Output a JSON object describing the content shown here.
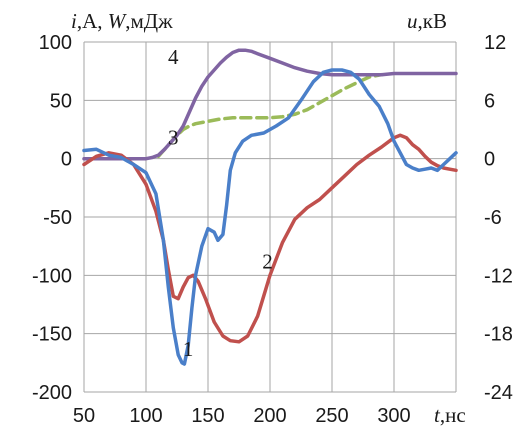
{
  "chart_data": {
    "type": "line",
    "title": "",
    "x_axis": {
      "label_var": "t",
      "label_unit": ",нс",
      "range": [
        50,
        350
      ],
      "ticks": [
        "50",
        "100",
        "150",
        "200",
        "250",
        "300"
      ]
    },
    "y_axis_left": {
      "label_i": "i",
      "label_i_unit": ",А, ",
      "label_w": "W",
      "label_w_unit": ",мДж",
      "range": [
        -200,
        100
      ],
      "ticks": [
        "100",
        "50",
        "0",
        "-50",
        "-100",
        "-150",
        "-200"
      ]
    },
    "y_axis_right": {
      "label_var": "u",
      "label_unit": ",кВ",
      "range": [
        -24,
        12
      ],
      "ticks": [
        "12",
        "6",
        "0",
        "-6",
        "-12",
        "-18",
        "-24"
      ]
    },
    "grid": true,
    "series": [
      {
        "label": "1",
        "color": "#4a7fc9",
        "axis": "left",
        "x": [
          50,
          60,
          70,
          80,
          90,
          100,
          108,
          114,
          118,
          122,
          126,
          129,
          131,
          134,
          137,
          140,
          145,
          150,
          155,
          158,
          162,
          165,
          168,
          172,
          178,
          185,
          195,
          205,
          215,
          225,
          235,
          243,
          250,
          258,
          265,
          272,
          280,
          288,
          295,
          300,
          305,
          310,
          315,
          320,
          325,
          330,
          335,
          340,
          345,
          350
        ],
        "y": [
          7,
          8,
          3,
          1,
          -5,
          -12,
          -30,
          -70,
          -110,
          -145,
          -168,
          -175,
          -176,
          -160,
          -128,
          -100,
          -75,
          -60,
          -63,
          -70,
          -65,
          -40,
          -10,
          5,
          15,
          20,
          22,
          28,
          35,
          50,
          66,
          74,
          76,
          76,
          74,
          68,
          55,
          45,
          30,
          15,
          5,
          -5,
          -8,
          -10,
          -9,
          -8,
          -10,
          -5,
          0,
          5
        ]
      },
      {
        "label": "2",
        "color": "#c0504d",
        "axis": "left",
        "x": [
          50,
          60,
          70,
          80,
          90,
          100,
          108,
          114,
          118,
          122,
          126,
          130,
          134,
          138,
          142,
          148,
          155,
          162,
          168,
          175,
          182,
          190,
          200,
          210,
          220,
          230,
          240,
          250,
          260,
          270,
          280,
          290,
          300,
          305,
          310,
          315,
          320,
          325,
          330,
          335,
          340,
          345,
          350
        ],
        "y": [
          -5,
          2,
          5,
          3,
          -5,
          -22,
          -45,
          -70,
          -95,
          -118,
          -120,
          -110,
          -102,
          -100,
          -105,
          -120,
          -140,
          -152,
          -156,
          -157,
          -152,
          -135,
          -100,
          -72,
          -52,
          -42,
          -35,
          -25,
          -15,
          -5,
          3,
          10,
          18,
          20,
          18,
          12,
          8,
          2,
          -3,
          -6,
          -8,
          -9,
          -10
        ]
      },
      {
        "label": "3",
        "color": "#9bbb59",
        "axis": "left",
        "x": [
          110,
          115,
          120,
          125,
          130,
          135,
          140,
          150,
          160,
          170,
          180,
          190,
          200,
          210,
          220,
          230,
          240,
          250,
          260,
          270,
          280,
          290
        ],
        "y": [
          2,
          8,
          14,
          20,
          25,
          28,
          30,
          32,
          34,
          35,
          35,
          35,
          35,
          36,
          38,
          42,
          48,
          54,
          60,
          65,
          70,
          72
        ]
      },
      {
        "label": "4",
        "color": "#8064a2",
        "axis": "left",
        "x": [
          50,
          60,
          70,
          80,
          90,
          100,
          105,
          110,
          115,
          120,
          125,
          130,
          135,
          140,
          145,
          150,
          155,
          160,
          165,
          170,
          175,
          180,
          185,
          190,
          200,
          210,
          220,
          230,
          240,
          250,
          260,
          270,
          280,
          290,
          300,
          310,
          320,
          330,
          340,
          350
        ],
        "y": [
          0,
          0,
          0,
          0,
          0,
          0,
          1,
          3,
          8,
          14,
          20,
          28,
          40,
          52,
          62,
          70,
          76,
          82,
          87,
          91,
          93,
          93,
          92,
          90,
          86,
          82,
          78,
          75,
          73,
          72,
          72,
          72,
          72,
          72,
          73,
          73,
          73,
          73,
          73,
          73
        ]
      }
    ]
  }
}
